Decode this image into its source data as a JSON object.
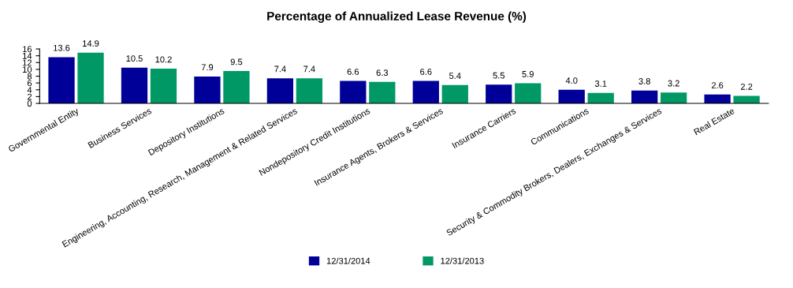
{
  "chart_data": {
    "type": "bar",
    "title": "Percentage of Annualized Lease Revenue (%)",
    "categories": [
      "Governmental Entity",
      "Business Services",
      "Depository Institutions",
      "Engineering, Accounting, Research, Management & Related Services",
      "Nondepository Credit Institutions",
      "Insurance Agents, Brokers & Services",
      "Insurance Carriers",
      "Communications",
      "Security & Commodity Brokers, Dealers, Exchanges & Services",
      "Real Estate"
    ],
    "series": [
      {
        "name": "12/31/2014",
        "color": "#000099",
        "values": [
          13.6,
          10.5,
          7.9,
          7.4,
          6.6,
          6.6,
          5.5,
          4.0,
          3.8,
          2.6
        ],
        "value_labels": [
          "13.6",
          "10.5",
          "7.9",
          "7.4",
          "6.6",
          "6.6",
          "5.5",
          "4.0",
          "3.8",
          "2.6"
        ]
      },
      {
        "name": "12/31/2013",
        "color": "#009966",
        "values": [
          14.9,
          10.2,
          9.5,
          7.4,
          6.3,
          5.4,
          5.9,
          3.1,
          3.2,
          2.2
        ],
        "value_labels": [
          "14.9",
          "10.2",
          "9.5",
          "7.4",
          "6.3",
          "5.4",
          "5.9",
          "3.1",
          "3.2",
          "2.2"
        ]
      }
    ],
    "ylim": [
      0,
      16
    ],
    "yticks": [
      0,
      2,
      4,
      6,
      8,
      10,
      12,
      14,
      16
    ],
    "grid": false,
    "legend": "bottom"
  }
}
